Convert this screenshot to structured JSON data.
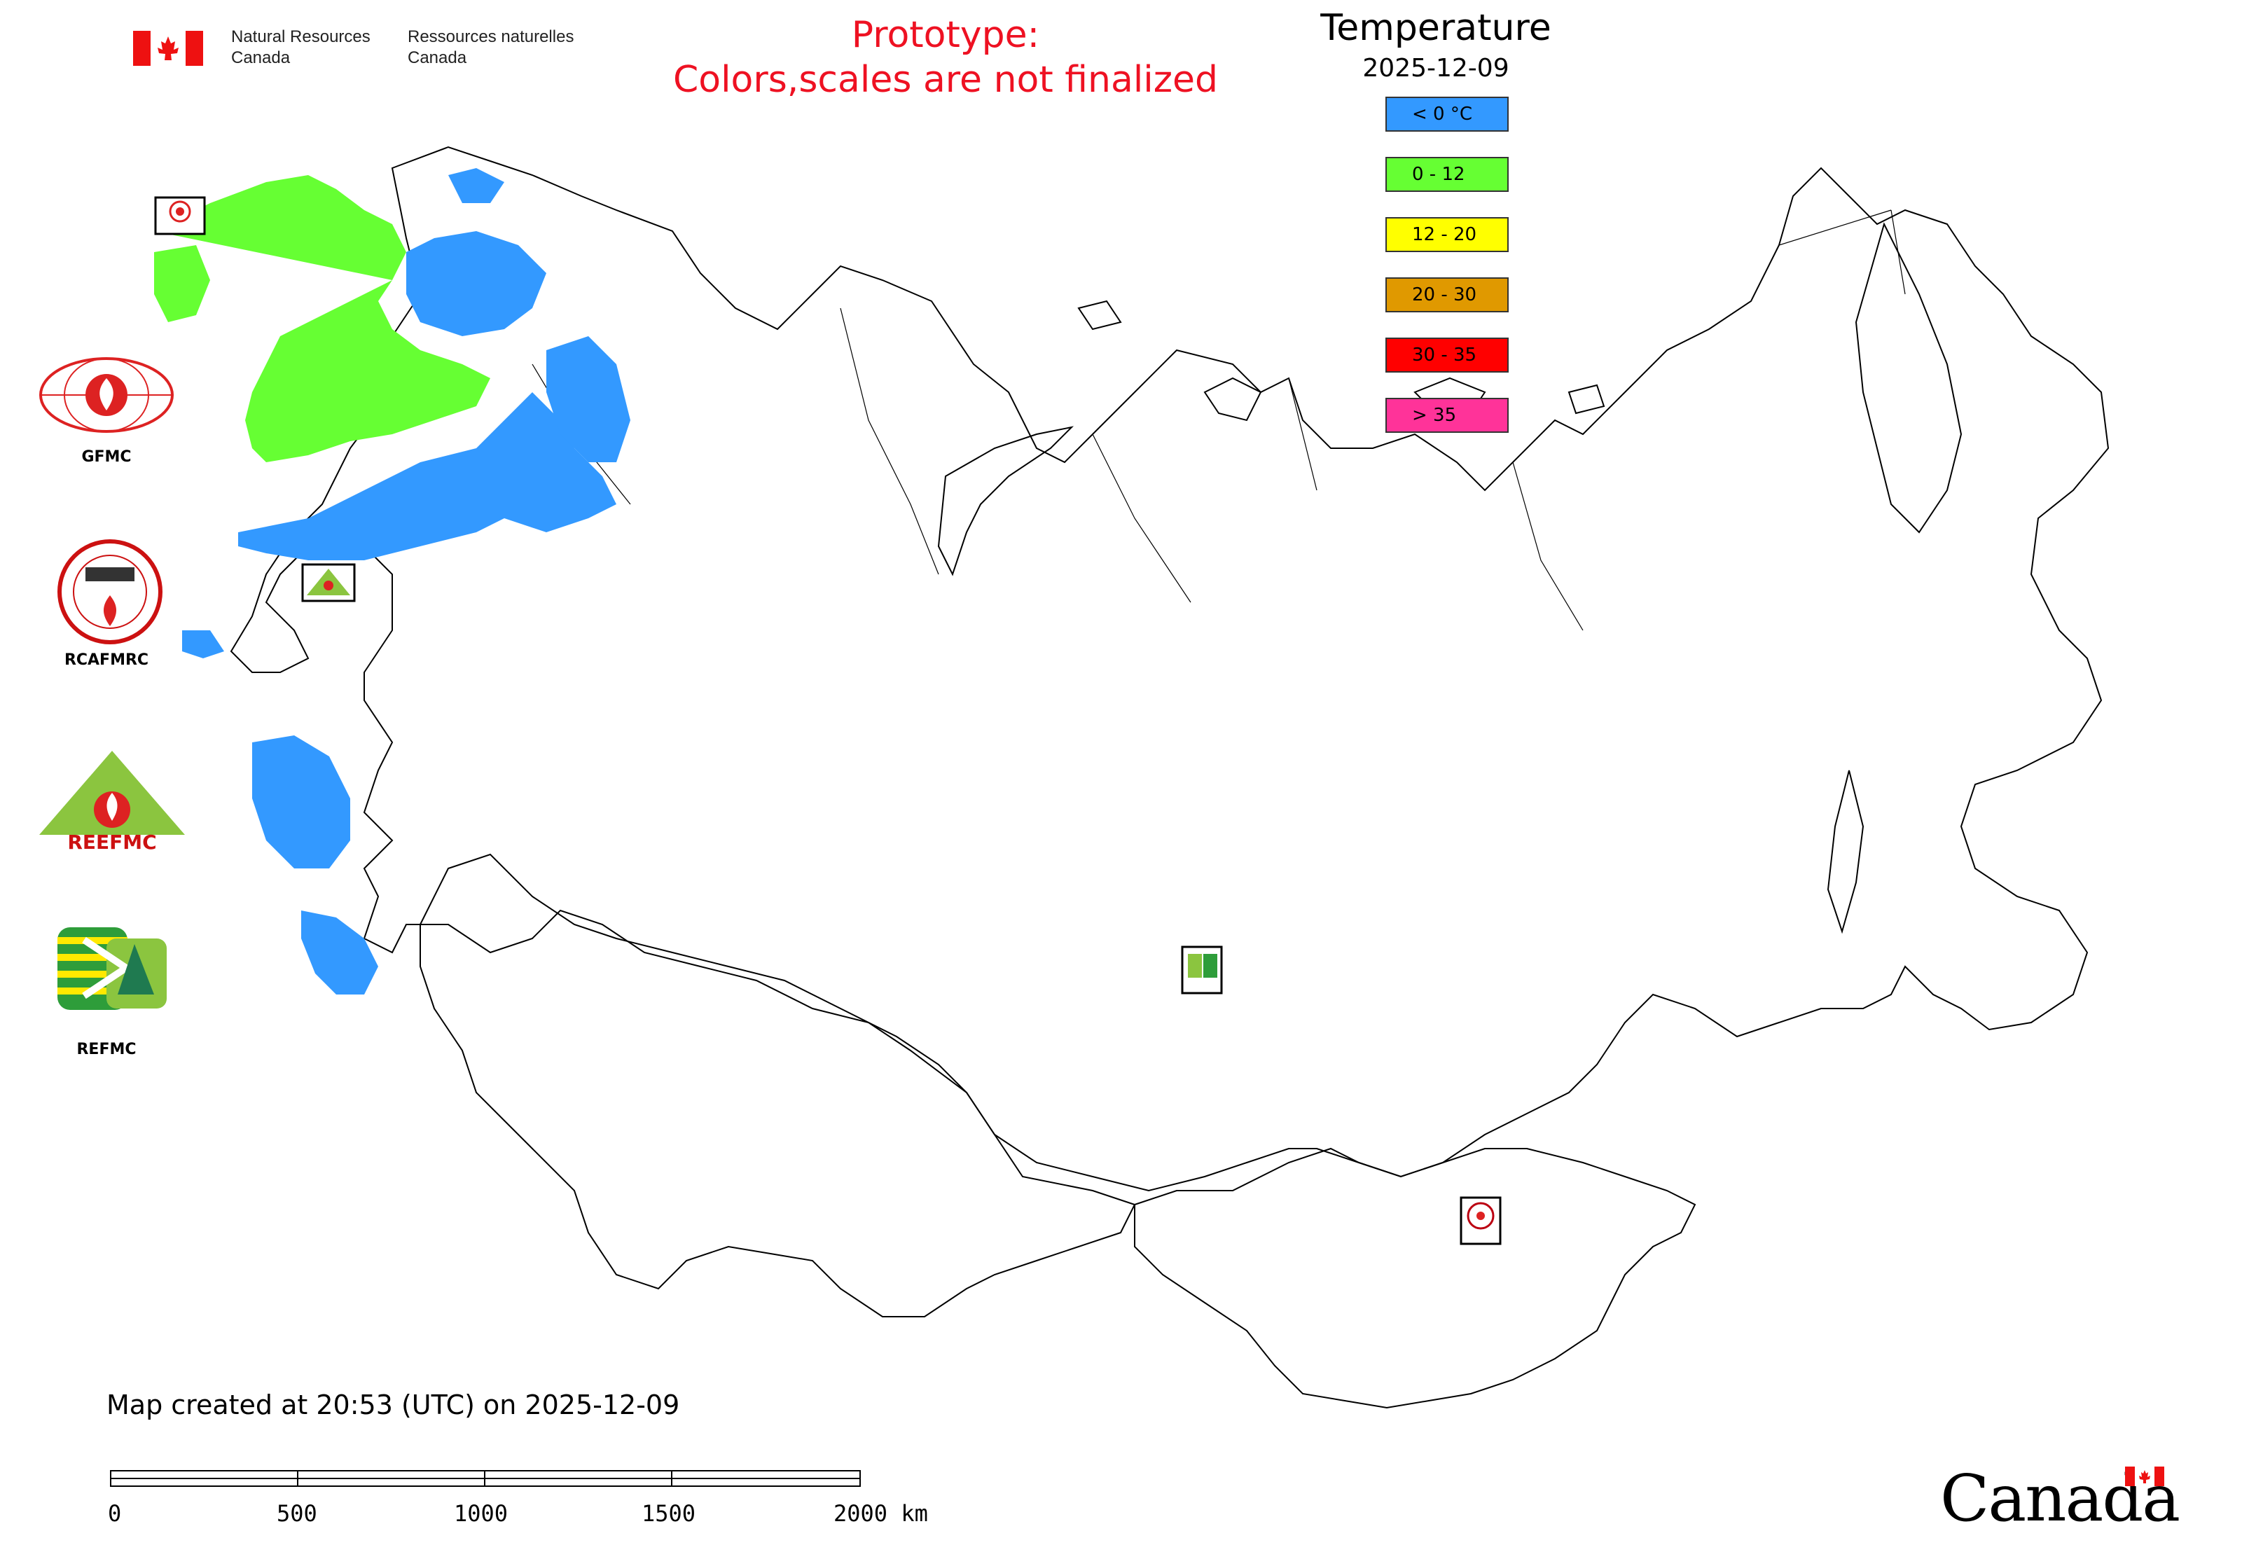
{
  "header": {
    "department_en_line1": "Natural Resources",
    "department_en_line2": "Canada",
    "department_fr_line1": "Ressources naturelles",
    "department_fr_line2": "Canada",
    "prototype_line1": "Prototype:",
    "prototype_line2": "Colors,scales are not finalized"
  },
  "legend": {
    "title": "Temperature",
    "date": "2025-12-09",
    "classes": [
      {
        "label": "< 0 °C",
        "color": "#3399ff"
      },
      {
        "label": "0 - 12",
        "color": "#66ff33"
      },
      {
        "label": "12 - 20",
        "color": "#ffff00"
      },
      {
        "label": "20 - 30",
        "color": "#e09900"
      },
      {
        "label": "30 - 35",
        "color": "#ff0000"
      },
      {
        "label": "> 35",
        "color": "#ff3399"
      }
    ]
  },
  "partners": [
    {
      "label": "GFMC",
      "icon": "gfmc-logo"
    },
    {
      "label": "RCAFMRC",
      "icon": "rcafmrc-logo"
    },
    {
      "label": "",
      "icon": "reefmc-logo",
      "logo_text": "REEFMC"
    },
    {
      "label": "REFMC",
      "icon": "refmc-logo"
    }
  ],
  "map_markers": {
    "gfmc": "GFMC",
    "reefmc": "REEFMC",
    "refmc": "REFMC",
    "rcafmrc": "RCAFMRC"
  },
  "footer": {
    "map_created": "Map created at 20:53 (UTC) on 2025-12-09",
    "scale_ticks": [
      "0",
      "500",
      "1000",
      "1500",
      "2000 km"
    ],
    "canada_wordmark": "Canada"
  }
}
